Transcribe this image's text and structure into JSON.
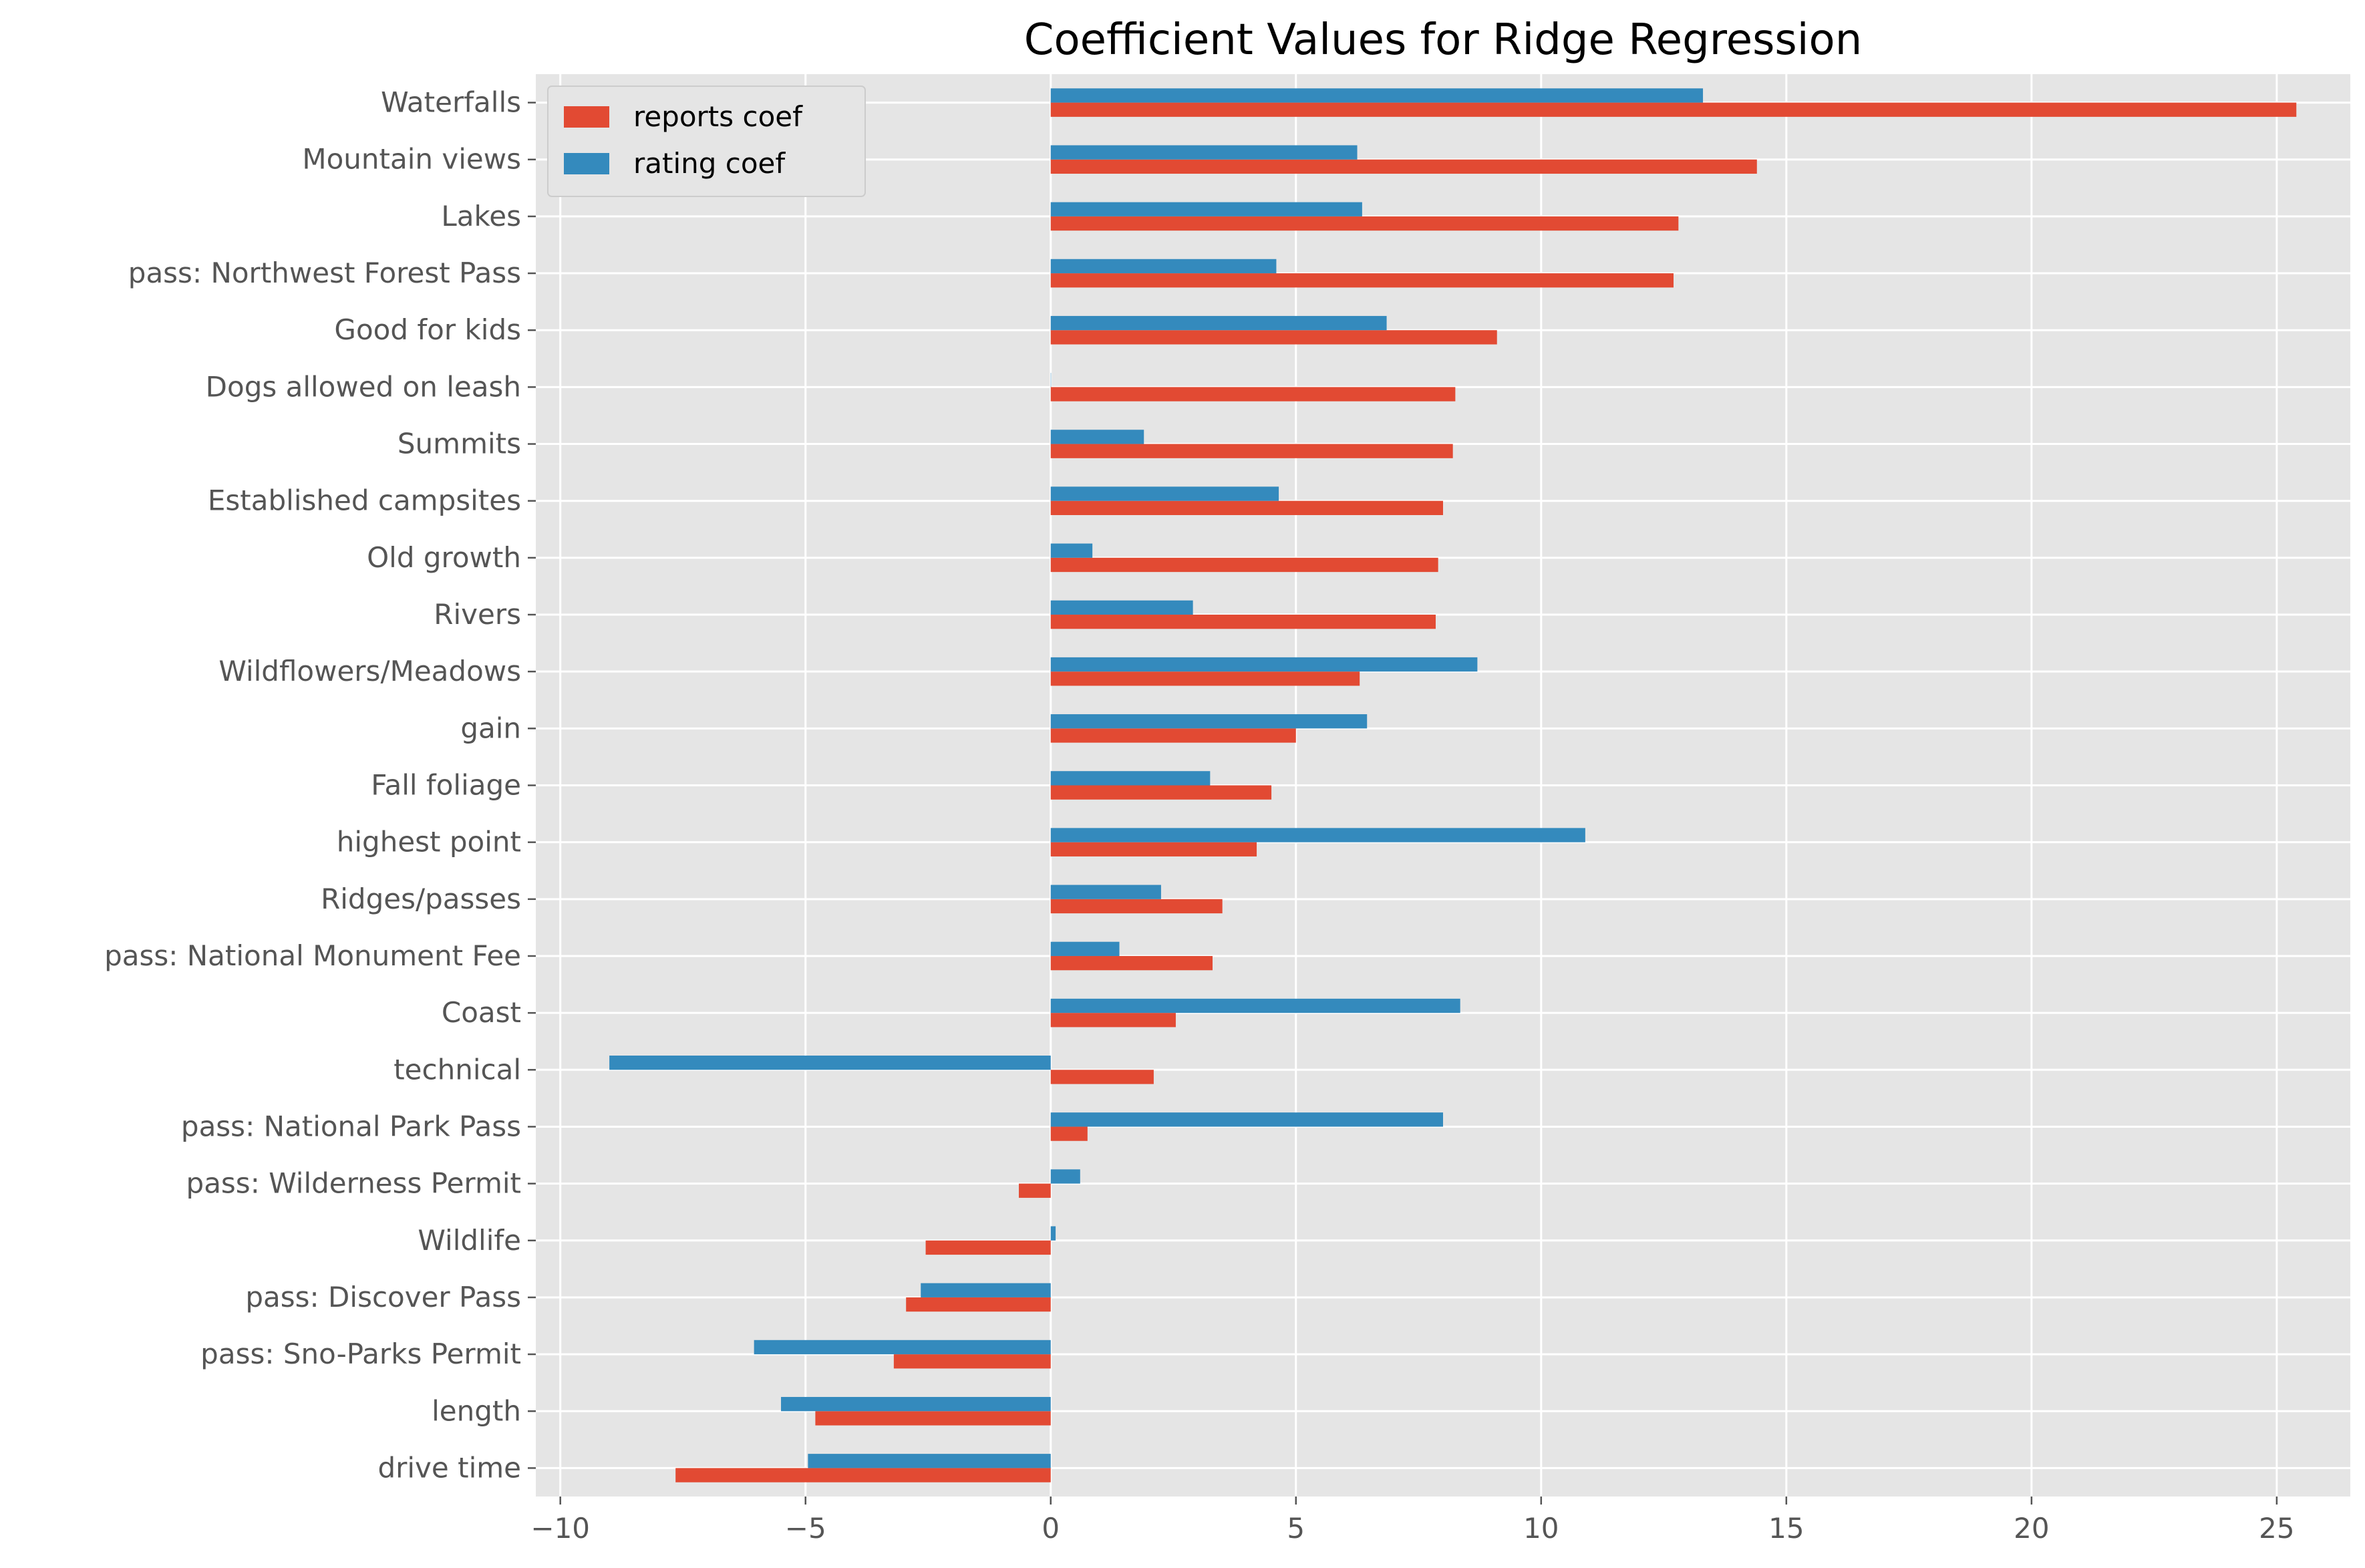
{
  "chart_data": {
    "type": "bar",
    "orientation": "horizontal",
    "title": "Coefficient Values for Ridge Regression",
    "xlabel": "",
    "ylabel": "",
    "xlim": [
      -10.5,
      26.5
    ],
    "x_ticks": [
      -10,
      -5,
      0,
      5,
      10,
      15,
      20,
      25
    ],
    "x_tick_labels": [
      "−10",
      "−5",
      "0",
      "5",
      "10",
      "15",
      "20",
      "25"
    ],
    "grid": true,
    "legend_position": "top-left",
    "categories": [
      "Waterfalls",
      "Mountain views",
      "Lakes",
      "pass: Northwest Forest Pass",
      "Good for kids",
      "Dogs allowed on leash",
      "Summits",
      "Established campsites",
      "Old growth",
      "Rivers",
      "Wildflowers/Meadows",
      "gain",
      "Fall foliage",
      "highest point",
      "Ridges/passes",
      "pass: National Monument Fee",
      "Coast",
      "technical",
      "pass: National Park Pass",
      "pass: Wilderness Permit",
      "Wildlife",
      "pass: Discover Pass",
      "pass: Sno-Parks Permit",
      "length",
      "drive time"
    ],
    "series": [
      {
        "name": "reports coef",
        "color": "#E24A33",
        "values": [
          25.4,
          14.4,
          12.8,
          12.7,
          9.1,
          8.25,
          8.2,
          8.0,
          7.9,
          7.85,
          6.3,
          5.0,
          4.5,
          4.2,
          3.5,
          3.3,
          2.55,
          2.1,
          0.75,
          -0.65,
          -2.55,
          -2.95,
          -3.2,
          -4.8,
          -7.65
        ]
      },
      {
        "name": "rating coef",
        "color": "#348ABD",
        "values": [
          13.3,
          6.25,
          6.35,
          4.6,
          6.85,
          0.0,
          1.9,
          4.65,
          0.85,
          2.9,
          8.7,
          6.45,
          3.25,
          10.9,
          2.25,
          1.4,
          8.35,
          -9.0,
          8.0,
          0.6,
          0.1,
          -2.65,
          -6.05,
          -5.5,
          -4.95
        ]
      }
    ]
  }
}
